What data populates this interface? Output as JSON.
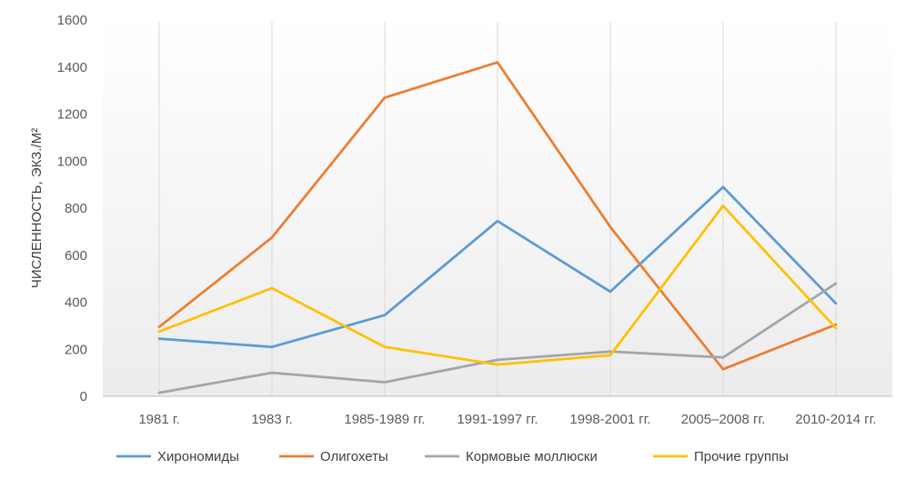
{
  "chart_data": {
    "type": "line",
    "title": "",
    "xlabel": "",
    "ylabel": "ЧИСЛЕННОСТЬ, ЭКЗ./М²",
    "ylim": [
      0,
      1600
    ],
    "yticks": [
      0,
      200,
      400,
      600,
      800,
      1000,
      1200,
      1400,
      1600
    ],
    "categories": [
      "1981 г.",
      "1983 г.",
      "1985-1989 гг.",
      "1991-1997 гг.",
      "1998-2001 гг.",
      "2005–2008 гг.",
      "2010-2014 гг."
    ],
    "series": [
      {
        "name": "Хирономиды",
        "color": "#5B9BD5",
        "values": [
          245,
          210,
          345,
          745,
          445,
          890,
          395
        ]
      },
      {
        "name": "Олигохеты",
        "color": "#ED7D31",
        "values": [
          295,
          675,
          1270,
          1420,
          720,
          115,
          305
        ]
      },
      {
        "name": "Кормовые моллюски",
        "color": "#A5A5A5",
        "values": [
          15,
          100,
          60,
          155,
          190,
          165,
          480
        ]
      },
      {
        "name": "Прочие группы",
        "color": "#FFC000",
        "values": [
          275,
          460,
          210,
          135,
          175,
          810,
          290
        ]
      }
    ],
    "grid": "vertical",
    "legend_position": "bottom"
  }
}
